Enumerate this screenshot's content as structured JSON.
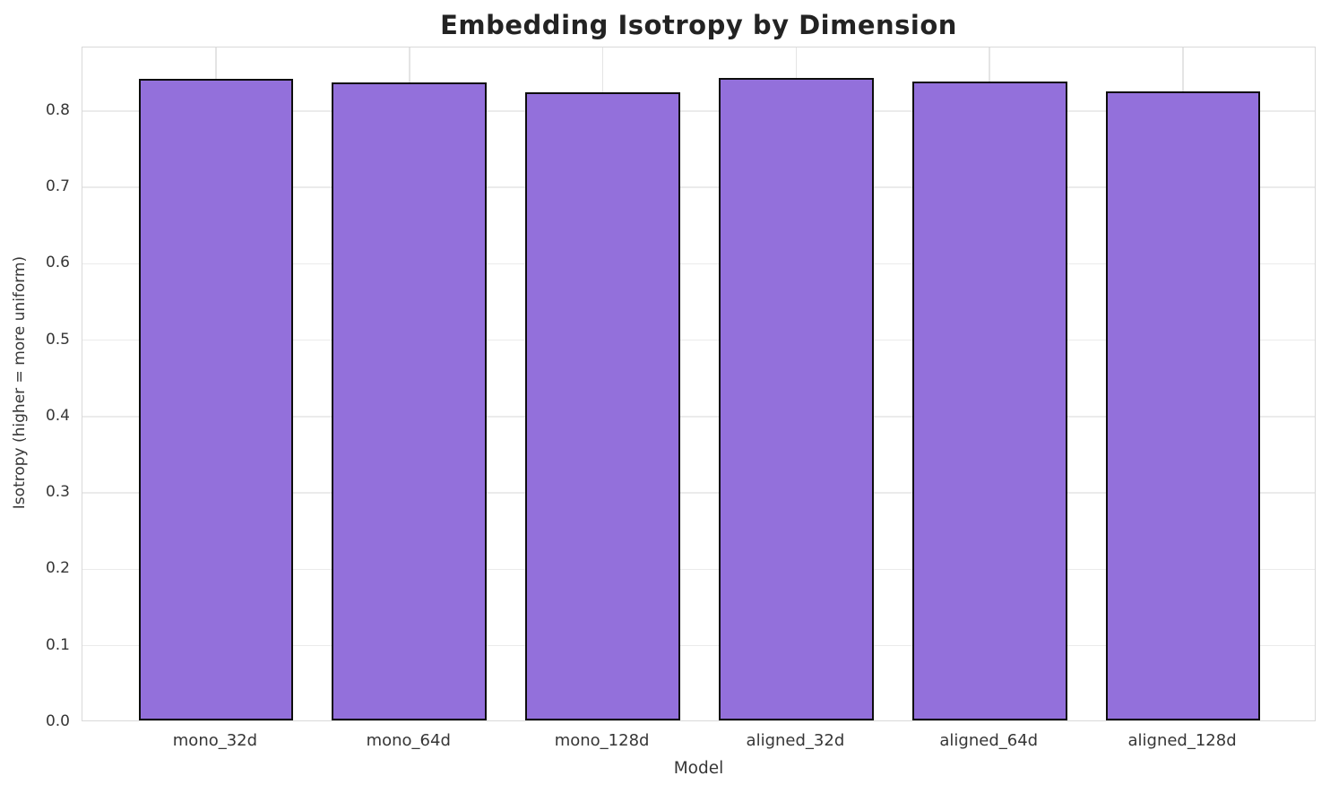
{
  "chart_data": {
    "type": "bar",
    "title": "Embedding Isotropy by Dimension",
    "xlabel": "Model",
    "ylabel": "Isotropy (higher = more uniform)",
    "categories": [
      "mono_32d",
      "mono_64d",
      "mono_128d",
      "aligned_32d",
      "aligned_64d",
      "aligned_128d"
    ],
    "values": [
      0.84,
      0.835,
      0.822,
      0.841,
      0.836,
      0.823
    ],
    "ylim": [
      0,
      0.883
    ],
    "yticks": [
      0.0,
      0.1,
      0.2,
      0.3,
      0.4,
      0.5,
      0.6,
      0.7,
      0.8
    ],
    "grid": true,
    "legend": null,
    "colors": {
      "bar_fill": "#9370DB",
      "bar_edge": "#0d0d0d",
      "grid_line": "#ebebeb",
      "spine": "#d9d9d9",
      "text": "#363636",
      "title_text": "#232323",
      "background": "#ffffff"
    }
  }
}
